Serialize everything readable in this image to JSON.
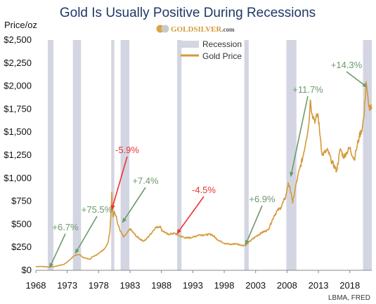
{
  "header": {
    "title": "Gold Is Usually Positive During Recessions",
    "logo_prefix": "G",
    "logo_text": "GOLDSILVER",
    "logo_suffix": ".com"
  },
  "footer": {
    "source": "LBMA, FRED"
  },
  "colors": {
    "title": "#1f3864",
    "gold": "#d49a3a",
    "recession": "#d3d6e2",
    "green": "#6d9a6b",
    "red": "#ee3333",
    "axis_text": "#111111"
  },
  "chart_data": {
    "type": "line",
    "title": "Gold Is Usually Positive During Recessions",
    "ylabel": "Price/oz",
    "xlabel": "",
    "ylim": [
      0,
      2500
    ],
    "xlim": [
      1968,
      2021.5
    ],
    "grid": false,
    "legend_position": "top-center",
    "x_ticks": [
      1968,
      1973,
      1978,
      1983,
      1988,
      1993,
      1998,
      2003,
      2008,
      2013,
      2018
    ],
    "y_ticks": [
      0,
      250,
      500,
      750,
      1000,
      1250,
      1500,
      1750,
      2000,
      2250,
      2500
    ],
    "y_tick_labels": [
      "$0",
      "$250",
      "$500",
      "$750",
      "$1,000",
      "$1,250",
      "$1,500",
      "$1,750",
      "$2,000",
      "$2,250",
      "$2,500"
    ],
    "legend": [
      "Recession",
      "Gold Price"
    ],
    "recessions": [
      [
        1969.9,
        1970.8
      ],
      [
        1973.9,
        1975.2
      ],
      [
        1980.0,
        1980.5
      ],
      [
        1981.5,
        1982.9
      ],
      [
        1990.5,
        1991.2
      ],
      [
        2001.2,
        2001.9
      ],
      [
        2007.9,
        2009.5
      ],
      [
        2020.1,
        2021.5
      ]
    ],
    "series": [
      {
        "name": "Gold Price",
        "x": [
          1968.0,
          1969.0,
          1970.0,
          1971.0,
          1972.0,
          1972.5,
          1973.0,
          1973.5,
          1974.0,
          1974.5,
          1975.0,
          1975.5,
          1976.0,
          1976.7,
          1977.0,
          1977.5,
          1978.0,
          1978.5,
          1979.0,
          1979.5,
          1979.8,
          1980.0,
          1980.1,
          1980.3,
          1980.5,
          1980.8,
          1981.0,
          1981.5,
          1982.0,
          1982.5,
          1983.0,
          1983.5,
          1984.0,
          1985.0,
          1985.5,
          1986.0,
          1987.0,
          1987.8,
          1988.0,
          1989.0,
          1990.0,
          1990.5,
          1991.0,
          1992.0,
          1993.0,
          1994.0,
          1995.0,
          1996.0,
          1997.0,
          1998.0,
          1999.0,
          1999.8,
          2000.0,
          2001.0,
          2001.5,
          2002.0,
          2003.0,
          2004.0,
          2005.0,
          2006.0,
          2006.5,
          2007.0,
          2007.8,
          2008.2,
          2008.7,
          2008.9,
          2009.5,
          2010.0,
          2010.5,
          2011.0,
          2011.5,
          2011.7,
          2012.0,
          2012.5,
          2012.9,
          2013.3,
          2013.6,
          2014.0,
          2014.5,
          2015.0,
          2015.9,
          2016.5,
          2017.0,
          2017.5,
          2018.0,
          2018.7,
          2019.0,
          2019.5,
          2020.0,
          2020.3,
          2020.6,
          2021.0,
          2021.5
        ],
        "values": [
          40,
          42,
          36,
          41,
          58,
          65,
          90,
          120,
          150,
          170,
          170,
          140,
          130,
          120,
          150,
          160,
          185,
          210,
          240,
          300,
          420,
          670,
          850,
          580,
          640,
          590,
          510,
          420,
          360,
          400,
          450,
          410,
          370,
          320,
          330,
          370,
          460,
          480,
          440,
          390,
          400,
          390,
          370,
          350,
          360,
          385,
          385,
          390,
          330,
          295,
          280,
          290,
          285,
          270,
          275,
          310,
          365,
          410,
          440,
          600,
          650,
          680,
          800,
          950,
          830,
          730,
          950,
          1100,
          1220,
          1400,
          1600,
          1850,
          1700,
          1620,
          1700,
          1450,
          1250,
          1280,
          1300,
          1200,
          1080,
          1320,
          1230,
          1280,
          1330,
          1200,
          1300,
          1450,
          1550,
          1700,
          2050,
          1780,
          1750
        ]
      }
    ],
    "annotations": [
      {
        "text": "+6.7%",
        "x": 1970.2,
        "y": 30,
        "color": "green"
      },
      {
        "text": "+75.5%",
        "x": 1974.3,
        "y": 185,
        "color": "green"
      },
      {
        "text": "-5.9%",
        "x": 1980.1,
        "y": 660,
        "color": "red"
      },
      {
        "text": "+7.4%",
        "x": 1981.8,
        "y": 520,
        "color": "green"
      },
      {
        "text": "-4.5%",
        "x": 1990.5,
        "y": 400,
        "color": "red"
      },
      {
        "text": "+6.9%",
        "x": 2001.4,
        "y": 280,
        "color": "green"
      },
      {
        "text": "+11.7%",
        "x": 2008.6,
        "y": 1020,
        "color": "green"
      },
      {
        "text": "+14.3%",
        "x": 2020.7,
        "y": 1990,
        "color": "green"
      }
    ]
  }
}
